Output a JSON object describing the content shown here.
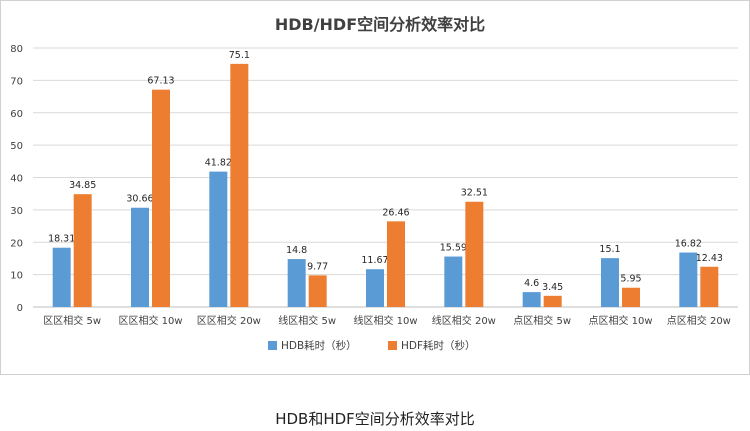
{
  "caption": "HDB和HDF空间分析效率对比",
  "chart_data": {
    "type": "bar",
    "title": "HDB/HDF空间分析效率对比",
    "xlabel": "",
    "ylabel": "",
    "ylim": [
      0,
      80
    ],
    "yticks": [
      0,
      10,
      20,
      30,
      40,
      50,
      60,
      70,
      80
    ],
    "grid": true,
    "legend": "bottom",
    "categories": [
      "区区相交 5w",
      "区区相交 10w",
      "区区相交 20w",
      "线区相交 5w",
      "线区相交 10w",
      "线区相交 20w",
      "点区相交 5w",
      "点区相交 10w",
      "点区相交 20w"
    ],
    "series": [
      {
        "name": "HDB耗时（秒）",
        "color": "#5b9bd5",
        "values": [
          18.31,
          30.66,
          41.82,
          14.8,
          11.67,
          15.59,
          4.6,
          15.1,
          16.82
        ],
        "labels": [
          "18.31",
          "30.66",
          "41.82",
          "14.8",
          "11.67",
          "15.59",
          "4.6",
          "15.1",
          "16.82"
        ]
      },
      {
        "name": "HDF耗时（秒）",
        "color": "#ed7d31",
        "values": [
          34.85,
          67.13,
          75.1,
          9.77,
          26.46,
          32.51,
          3.45,
          5.95,
          12.43
        ],
        "labels": [
          "34.85",
          "67.13",
          "75.1",
          "9.77",
          "26.46",
          "32.51",
          "3.45",
          "5.95",
          "12.43"
        ]
      }
    ]
  }
}
